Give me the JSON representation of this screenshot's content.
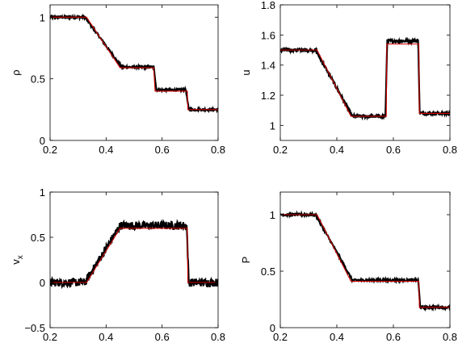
{
  "chart_data": [
    {
      "type": "line",
      "title": "",
      "xlabel": "",
      "ylabel": "ρ",
      "xlim": [
        0.2,
        0.8
      ],
      "ylim": [
        0,
        1.1
      ],
      "xticks": [
        "0.2",
        "0.4",
        "0.6",
        "0.8"
      ],
      "yticks": [
        "0",
        "0.5",
        "1"
      ],
      "xtick_values": [
        0.2,
        0.4,
        0.6,
        0.8
      ],
      "ytick_values": [
        0,
        0.5,
        1
      ],
      "grid": false,
      "series": [
        {
          "color": "#000000",
          "style": "noisy-points",
          "noise": 0.008,
          "x": [
            0.2,
            0.325,
            0.455,
            0.57,
            0.58,
            0.685,
            0.695,
            0.8
          ],
          "y": [
            1.0,
            1.0,
            0.595,
            0.595,
            0.41,
            0.41,
            0.25,
            0.25
          ]
        },
        {
          "color": "#d00000",
          "style": "line",
          "x": [
            0.2,
            0.33,
            0.45,
            0.57,
            0.575,
            0.69,
            0.692,
            0.8
          ],
          "y": [
            1.0,
            1.0,
            0.59,
            0.59,
            0.4,
            0.4,
            0.25,
            0.25
          ]
        }
      ]
    },
    {
      "type": "line",
      "title": "",
      "xlabel": "",
      "ylabel": "u",
      "xlim": [
        0.2,
        0.8
      ],
      "ylim": [
        0.9,
        1.8
      ],
      "xticks": [
        "0.2",
        "0.4",
        "0.6",
        "0.8"
      ],
      "yticks": [
        "1",
        "1.2",
        "1.4",
        "1.6",
        "1.8"
      ],
      "xtick_values": [
        0.2,
        0.4,
        0.6,
        0.8
      ],
      "ytick_values": [
        1.0,
        1.2,
        1.4,
        1.6,
        1.8
      ],
      "grid": false,
      "series": [
        {
          "color": "#000000",
          "style": "noisy-points",
          "noise": 0.012,
          "x": [
            0.2,
            0.325,
            0.455,
            0.572,
            0.578,
            0.688,
            0.693,
            0.8
          ],
          "y": [
            1.5,
            1.5,
            1.06,
            1.06,
            1.56,
            1.56,
            1.08,
            1.08
          ]
        },
        {
          "color": "#d00000",
          "style": "line",
          "x": [
            0.2,
            0.33,
            0.45,
            0.575,
            0.577,
            0.69,
            0.692,
            0.8
          ],
          "y": [
            1.5,
            1.5,
            1.06,
            1.06,
            1.54,
            1.54,
            1.08,
            1.08
          ]
        }
      ]
    },
    {
      "type": "line",
      "title": "",
      "xlabel": "",
      "ylabel": "v",
      "ylabel_sub": "x",
      "xlim": [
        0.2,
        0.8
      ],
      "ylim": [
        -0.5,
        1
      ],
      "xticks": [
        "0.2",
        "0.4",
        "0.6",
        "0.8"
      ],
      "yticks": [
        "−0.5",
        "0",
        "0.5",
        "1"
      ],
      "xtick_values": [
        0.2,
        0.4,
        0.6,
        0.8
      ],
      "ytick_values": [
        -0.5,
        0,
        0.5,
        1
      ],
      "grid": false,
      "series": [
        {
          "color": "#000000",
          "style": "noisy-points",
          "noise": 0.03,
          "x": [
            0.2,
            0.325,
            0.45,
            0.688,
            0.695,
            0.8
          ],
          "y": [
            0.0,
            0.0,
            0.63,
            0.63,
            0.0,
            0.0
          ]
        },
        {
          "color": "#d00000",
          "style": "line",
          "x": [
            0.2,
            0.33,
            0.45,
            0.69,
            0.692,
            0.8
          ],
          "y": [
            0.0,
            0.0,
            0.6,
            0.6,
            0.0,
            0.0
          ]
        }
      ]
    },
    {
      "type": "line",
      "title": "",
      "xlabel": "",
      "ylabel": "P",
      "xlim": [
        0.2,
        0.8
      ],
      "ylim": [
        0,
        1.2
      ],
      "xticks": [
        "0.2",
        "0.4",
        "0.6",
        "0.8"
      ],
      "yticks": [
        "0",
        "0.5",
        "1"
      ],
      "xtick_values": [
        0.2,
        0.4,
        0.6,
        0.8
      ],
      "ytick_values": [
        0,
        0.5,
        1
      ],
      "grid": false,
      "series": [
        {
          "color": "#000000",
          "style": "noisy-points",
          "noise": 0.008,
          "x": [
            0.2,
            0.325,
            0.455,
            0.688,
            0.695,
            0.8
          ],
          "y": [
            1.0,
            1.0,
            0.42,
            0.42,
            0.18,
            0.18
          ]
        },
        {
          "color": "#d00000",
          "style": "line",
          "x": [
            0.2,
            0.33,
            0.45,
            0.69,
            0.692,
            0.8
          ],
          "y": [
            1.0,
            1.0,
            0.41,
            0.41,
            0.18,
            0.18
          ]
        }
      ]
    }
  ]
}
